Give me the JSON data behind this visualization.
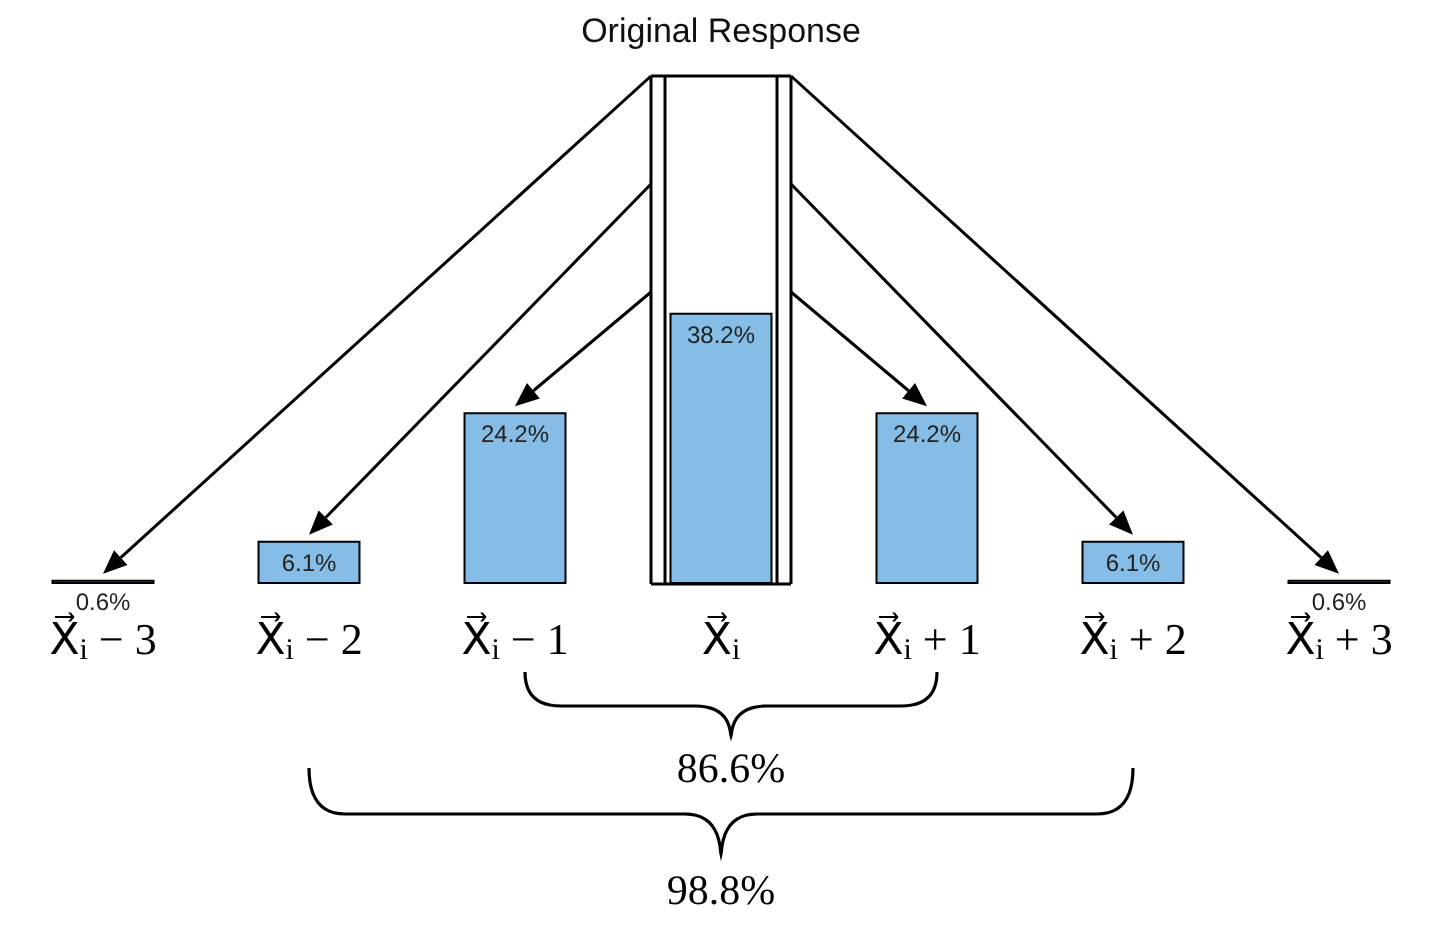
{
  "chart_data": {
    "type": "bar",
    "title": "Original Response",
    "categories": [
      "X⃗$_{i}$ − 3",
      "X⃗$_{i}$ − 2",
      "X⃗$_{i}$ − 1",
      "X⃗$_{i}$",
      "X⃗$_{i}$ + 1",
      "X⃗$_{i}$ + 2",
      "X⃗$_{i}$ + 3"
    ],
    "values": [
      0.6,
      6.1,
      24.2,
      38.2,
      24.2,
      6.1,
      0.6
    ],
    "value_labels": [
      "0.6%",
      "6.1%",
      "24.2%",
      "38.2%",
      "24.2%",
      "6.1%",
      "0.6%"
    ],
    "color": "#85bde6",
    "annotations": [
      "86.6%",
      "98.8%"
    ]
  }
}
